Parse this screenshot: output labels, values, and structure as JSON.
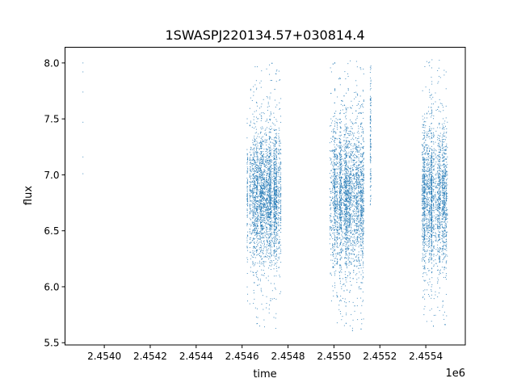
{
  "chart_data": {
    "type": "scatter",
    "title": "1SWASPJ220134.57+030814.4",
    "xlabel": "time",
    "ylabel": "flux",
    "x_offset_label": "1e6",
    "xlim": [
      2453829,
      2455572
    ],
    "ylim": [
      5.48,
      8.14
    ],
    "x_ticks": [
      2454000,
      2454200,
      2454400,
      2454600,
      2454800,
      2455000,
      2455200,
      2455400
    ],
    "x_tick_labels": [
      "2.4540",
      "2.4542",
      "2.4544",
      "2.4546",
      "2.4548",
      "2.4550",
      "2.4552",
      "2.4554"
    ],
    "y_ticks": [
      5.5,
      6.0,
      6.5,
      7.0,
      7.5,
      8.0
    ],
    "y_tick_labels": [
      "5.5",
      "6.0",
      "6.5",
      "7.0",
      "7.5",
      "8.0"
    ],
    "grid": false,
    "legend": "none",
    "marker_color": "#1f77b4",
    "series": [
      {
        "isolated_points": [
          {
            "x": 2453907,
            "y": 8.0
          },
          {
            "x": 2453907,
            "y": 7.92
          },
          {
            "x": 2453907,
            "y": 7.74
          },
          {
            "x": 2453907,
            "y": 7.47
          },
          {
            "x": 2453907,
            "y": 7.16
          },
          {
            "x": 2453907,
            "y": 7.01
          }
        ],
        "observing_seasons": [
          {
            "x_range": [
              2454621,
              2454769
            ],
            "y_median": 6.8,
            "y_core": [
              6.45,
              7.15
            ],
            "y_range": [
              5.6,
              8.0
            ]
          },
          {
            "x_range": [
              2454980,
              2455131
            ],
            "y_median": 6.8,
            "y_core": [
              6.4,
              7.2
            ],
            "y_range": [
              5.58,
              8.02
            ]
          },
          {
            "x_range": [
              2455155,
              2455162
            ],
            "y_median": 7.3,
            "y_core": [
              6.8,
              8.0
            ],
            "y_range": [
              6.7,
              8.0
            ]
          },
          {
            "x_range": [
              2455381,
              2455494
            ],
            "y_median": 6.8,
            "y_core": [
              6.45,
              7.2
            ],
            "y_range": [
              5.62,
              8.03
            ]
          }
        ]
      }
    ]
  }
}
